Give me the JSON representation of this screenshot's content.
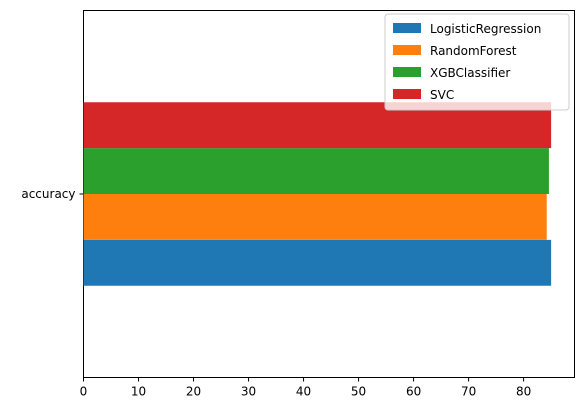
{
  "chart_data": {
    "type": "bar",
    "orientation": "horizontal",
    "categories": [
      "accuracy"
    ],
    "series": [
      {
        "name": "LogisticRegression",
        "values": [
          85.0
        ],
        "color": "#1f77b4"
      },
      {
        "name": "RandomForest",
        "values": [
          84.2
        ],
        "color": "#ff7f0e"
      },
      {
        "name": "XGBClassifier",
        "values": [
          84.6
        ],
        "color": "#2ca02c"
      },
      {
        "name": "SVC",
        "values": [
          85.0
        ],
        "color": "#d62728"
      }
    ],
    "xticks": [
      "0",
      "10",
      "20",
      "30",
      "40",
      "50",
      "60",
      "70",
      "80"
    ],
    "xlim": [
      0,
      89.25
    ],
    "title": "",
    "xlabel": "",
    "ylabel": "",
    "grid": false,
    "legend_position": "top-right"
  }
}
